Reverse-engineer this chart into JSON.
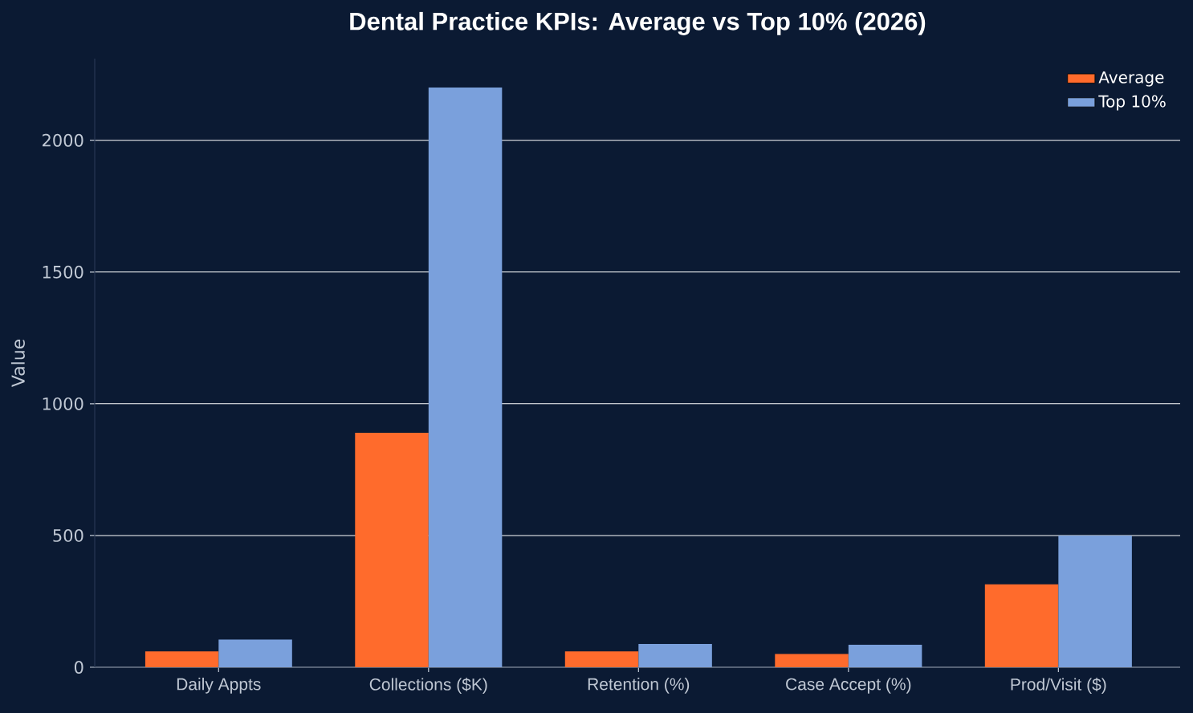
{
  "chart_data": {
    "type": "bar",
    "title": "Dental Practice KPIs: Average vs Top 10% (2026)",
    "ylabel": "Value",
    "categories": [
      "Daily Appts",
      "Collections ($K)",
      "Retention (%)",
      "Case Accept (%)",
      "Prod/Visit ($)"
    ],
    "series": [
      {
        "name": "Average",
        "color": "#ff6b2c",
        "values": [
          60,
          890,
          60,
          50,
          315
        ]
      },
      {
        "name": "Top 10%",
        "color": "#7aa0dc",
        "values": [
          105,
          2200,
          88,
          85,
          500
        ]
      }
    ],
    "ylim": [
      0,
      2310
    ],
    "yticks": [
      0,
      500,
      1000,
      1500,
      2000
    ],
    "grid": "y",
    "legend": "top right"
  }
}
